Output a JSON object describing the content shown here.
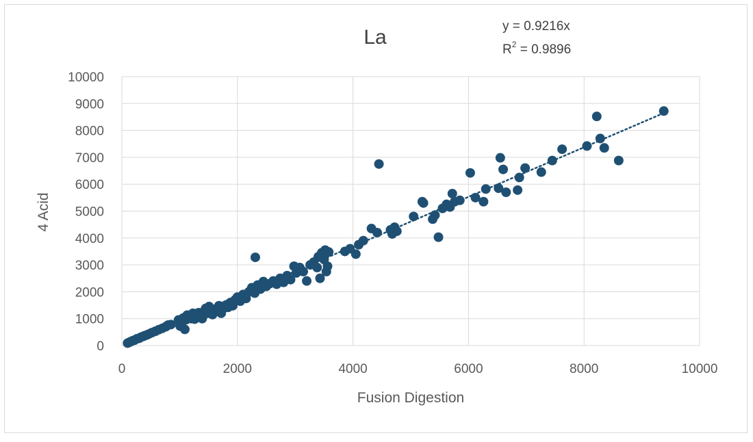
{
  "chart_data": {
    "type": "scatter",
    "title": "La",
    "xlabel": "Fusion Digestion",
    "ylabel": "4 Acid",
    "xlim": [
      0,
      10000
    ],
    "ylim": [
      0,
      10000
    ],
    "xticks": [
      "0",
      "2000",
      "4000",
      "6000",
      "8000",
      "10000"
    ],
    "yticks": [
      "0",
      "1000",
      "2000",
      "3000",
      "4000",
      "5000",
      "6000",
      "7000",
      "8000",
      "9000",
      "10000"
    ],
    "grid": true,
    "legend": "none",
    "marker_color": "#1f5073",
    "trendline": {
      "type": "linear",
      "slope": 0.9216,
      "intercept": 0,
      "style": "dotted",
      "equation_text": "y = 0.9216x",
      "r2_prefix": "R",
      "r2_sup": "2",
      "r2_suffix": " = 0.9896"
    },
    "points": [
      [
        100,
        90
      ],
      [
        130,
        120
      ],
      [
        160,
        150
      ],
      [
        190,
        180
      ],
      [
        220,
        200
      ],
      [
        260,
        250
      ],
      [
        300,
        270
      ],
      [
        330,
        310
      ],
      [
        370,
        340
      ],
      [
        400,
        370
      ],
      [
        430,
        390
      ],
      [
        470,
        430
      ],
      [
        520,
        480
      ],
      [
        580,
        530
      ],
      [
        640,
        590
      ],
      [
        700,
        640
      ],
      [
        760,
        700
      ],
      [
        800,
        760
      ],
      [
        850,
        780
      ],
      [
        980,
        950
      ],
      [
        1010,
        720
      ],
      [
        1040,
        880
      ],
      [
        1060,
        1020
      ],
      [
        1090,
        600
      ],
      [
        1110,
        960
      ],
      [
        1130,
        1130
      ],
      [
        1160,
        1040
      ],
      [
        1200,
        1000
      ],
      [
        1230,
        1200
      ],
      [
        1260,
        980
      ],
      [
        1300,
        1100
      ],
      [
        1330,
        1220
      ],
      [
        1360,
        1150
      ],
      [
        1390,
        1000
      ],
      [
        1420,
        1260
      ],
      [
        1450,
        1380
      ],
      [
        1480,
        1200
      ],
      [
        1510,
        1450
      ],
      [
        1540,
        1300
      ],
      [
        1570,
        1150
      ],
      [
        1600,
        1350
      ],
      [
        1640,
        1270
      ],
      [
        1680,
        1480
      ],
      [
        1720,
        1200
      ],
      [
        1760,
        1380
      ],
      [
        1800,
        1500
      ],
      [
        1840,
        1420
      ],
      [
        1880,
        1600
      ],
      [
        1920,
        1480
      ],
      [
        1960,
        1700
      ],
      [
        2000,
        1800
      ],
      [
        2050,
        1650
      ],
      [
        2100,
        1900
      ],
      [
        2150,
        1750
      ],
      [
        2200,
        2000
      ],
      [
        2250,
        2150
      ],
      [
        2300,
        1950
      ],
      [
        2310,
        3280
      ],
      [
        2350,
        2250
      ],
      [
        2400,
        2100
      ],
      [
        2450,
        2380
      ],
      [
        2500,
        2200
      ],
      [
        2560,
        2300
      ],
      [
        2620,
        2400
      ],
      [
        2680,
        2280
      ],
      [
        2740,
        2500
      ],
      [
        2800,
        2350
      ],
      [
        2860,
        2600
      ],
      [
        2920,
        2450
      ],
      [
        2980,
        2950
      ],
      [
        3020,
        2700
      ],
      [
        3080,
        2900
      ],
      [
        3140,
        2750
      ],
      [
        3200,
        2400
      ],
      [
        3260,
        3000
      ],
      [
        3320,
        3100
      ],
      [
        3380,
        2900
      ],
      [
        3400,
        3300
      ],
      [
        3430,
        2500
      ],
      [
        3460,
        3450
      ],
      [
        3500,
        3200
      ],
      [
        3520,
        3550
      ],
      [
        3540,
        2750
      ],
      [
        3560,
        2950
      ],
      [
        3580,
        3480
      ],
      [
        3860,
        3500
      ],
      [
        3950,
        3600
      ],
      [
        4050,
        3400
      ],
      [
        4100,
        3750
      ],
      [
        4180,
        3900
      ],
      [
        4320,
        4350
      ],
      [
        4420,
        4200
      ],
      [
        4450,
        6750
      ],
      [
        4650,
        4300
      ],
      [
        4680,
        4150
      ],
      [
        4720,
        4400
      ],
      [
        4760,
        4250
      ],
      [
        5050,
        4800
      ],
      [
        5200,
        5350
      ],
      [
        5220,
        5300
      ],
      [
        5380,
        4700
      ],
      [
        5420,
        4850
      ],
      [
        5480,
        4030
      ],
      [
        5550,
        5100
      ],
      [
        5620,
        5250
      ],
      [
        5680,
        5150
      ],
      [
        5720,
        5650
      ],
      [
        5760,
        5350
      ],
      [
        5850,
        5400
      ],
      [
        6030,
        6420
      ],
      [
        6120,
        5500
      ],
      [
        6260,
        5350
      ],
      [
        6300,
        5820
      ],
      [
        6520,
        5850
      ],
      [
        6550,
        6980
      ],
      [
        6600,
        6550
      ],
      [
        6650,
        5700
      ],
      [
        6850,
        5780
      ],
      [
        6880,
        6250
      ],
      [
        6980,
        6600
      ],
      [
        7260,
        6450
      ],
      [
        7450,
        6880
      ],
      [
        7620,
        7300
      ],
      [
        8050,
        7420
      ],
      [
        8220,
        8520
      ],
      [
        8280,
        7700
      ],
      [
        8350,
        7350
      ],
      [
        8600,
        6880
      ],
      [
        9380,
        8720
      ]
    ]
  }
}
